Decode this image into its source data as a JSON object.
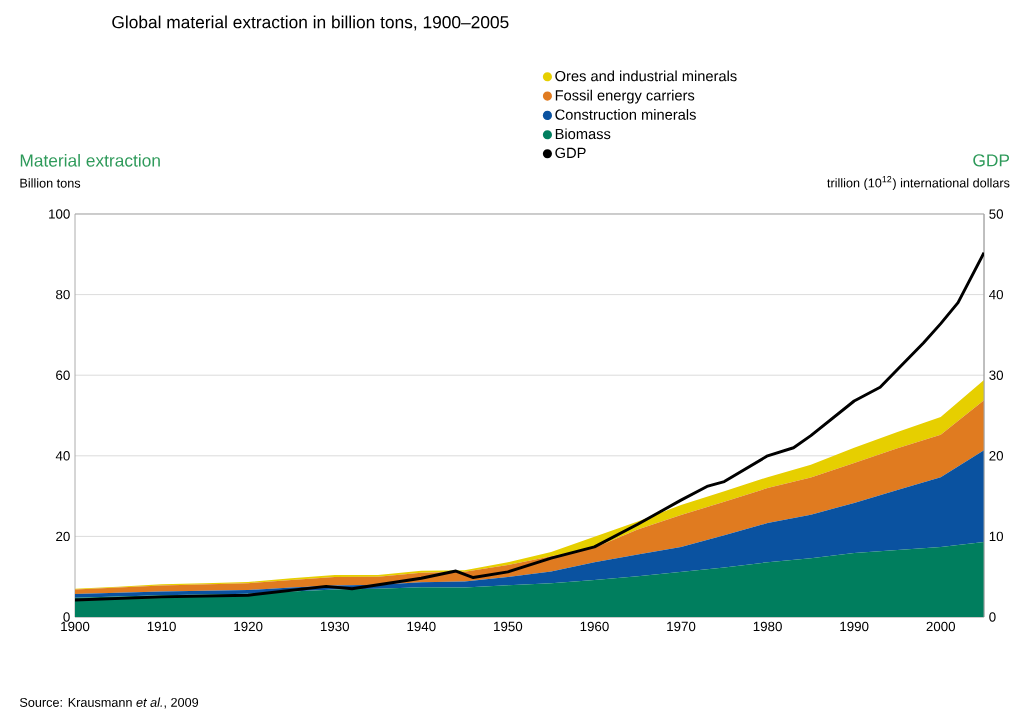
{
  "chart_data": {
    "type": "area",
    "stacked": true,
    "title": "Global material extraction in billion tons, 1900–2005",
    "ylabel": "Material extraction",
    "y2label": "GDP",
    "annotations": [
      "Billion tons",
      "trillion (10$^{12}$) international dollars",
      "Source: Krausmann *et al.*, 2009"
    ],
    "x": [
      1900,
      1905,
      1910,
      1915,
      1920,
      1925,
      1930,
      1935,
      1940,
      1945,
      1950,
      1955,
      1960,
      1965,
      1970,
      1975,
      1980,
      1985,
      1990,
      1995,
      2000,
      2005
    ],
    "series": [
      {
        "name": "Biomass",
        "color": "#007e5e",
        "values": [
          4.8,
          5.1,
          5.4,
          5.6,
          5.8,
          6.3,
          6.8,
          7.0,
          7.4,
          7.3,
          7.9,
          8.4,
          9.2,
          10.1,
          11.2,
          12.3,
          13.6,
          14.6,
          15.9,
          16.6,
          17.4,
          18.6
        ]
      },
      {
        "name": "Construction minerals",
        "color": "#0a52a0",
        "values": [
          0.9,
          0.9,
          0.9,
          0.9,
          0.9,
          1.0,
          1.0,
          1.0,
          1.2,
          1.5,
          2.0,
          2.9,
          4.4,
          5.4,
          6.2,
          8.0,
          9.7,
          10.8,
          12.4,
          14.9,
          17.3,
          22.8
        ]
      },
      {
        "name": "Fossil energy carriers",
        "color": "#e07b20",
        "values": [
          1.1,
          1.3,
          1.5,
          1.6,
          1.7,
          1.9,
          2.1,
          2.0,
          2.4,
          2.4,
          3.0,
          3.8,
          3.6,
          6.2,
          7.9,
          8.3,
          8.7,
          9.2,
          9.9,
          10.4,
          10.5,
          12.4
        ]
      },
      {
        "name": "Ores and industrial minerals",
        "color": "#e6cf00",
        "values": [
          0.2,
          0.2,
          0.3,
          0.3,
          0.3,
          0.4,
          0.5,
          0.4,
          0.5,
          0.4,
          0.7,
          1.0,
          2.7,
          2.0,
          2.5,
          2.6,
          2.7,
          3.2,
          3.8,
          4.0,
          4.4,
          5.0
        ]
      },
      {
        "name": "GDP",
        "type": "line",
        "axis": "y2",
        "color": "#000000",
        "x": [
          1900,
          1910,
          1920,
          1929,
          1932,
          1940,
          1944,
          1946,
          1950,
          1955,
          1960,
          1965,
          1970,
          1973,
          1975,
          1980,
          1983,
          1985,
          1990,
          1993,
          1995,
          1998,
          2000,
          2002,
          2005
        ],
        "values": [
          2.1,
          2.5,
          2.7,
          3.8,
          3.5,
          4.8,
          5.7,
          4.9,
          5.6,
          7.3,
          8.7,
          11.5,
          14.5,
          16.2,
          16.8,
          20.0,
          21.0,
          22.5,
          26.8,
          28.5,
          30.7,
          34.0,
          36.4,
          39.0,
          45.2
        ]
      }
    ],
    "xlim": [
      1900,
      2005
    ],
    "xticks": [
      1900,
      1910,
      1920,
      1930,
      1940,
      1950,
      1960,
      1970,
      1980,
      1990,
      2000
    ],
    "ylim": [
      0,
      100
    ],
    "yticks": [
      0,
      20,
      40,
      60,
      80,
      100
    ],
    "y2lim": [
      0,
      50
    ],
    "y2ticks": [
      0,
      10,
      20,
      30,
      40,
      50
    ],
    "grid": "y",
    "legend": "top",
    "marker": "none"
  }
}
